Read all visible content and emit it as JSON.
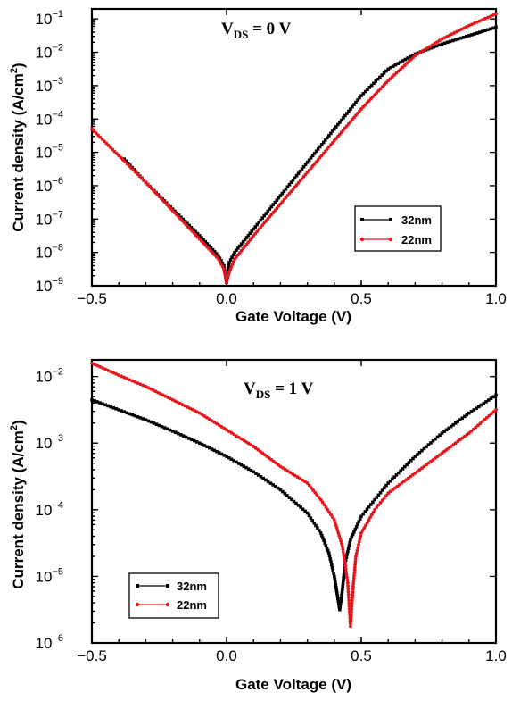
{
  "chart_data": [
    {
      "type": "line",
      "title": "",
      "annotation": {
        "main": "V",
        "sub": "DS",
        "rest": " = 0 V"
      },
      "xlabel": "Gate Voltage (V)",
      "ylabel": "Current density (A/cm",
      "ylabel_sup": "2",
      "ylabel_end": ")",
      "xlim": [
        -0.5,
        1.0
      ],
      "ylim_log10": [
        -9,
        -0.7
      ],
      "yscale": "log",
      "x_ticks": [
        -0.5,
        0.0,
        0.5,
        1.0
      ],
      "x_tick_labels": [
        "−0.5",
        "0.0",
        "0.5",
        "1.0"
      ],
      "y_tick_exponents": [
        -9,
        -8,
        -7,
        -6,
        -5,
        -4,
        -3,
        -2,
        -1
      ],
      "y_tick_labels": [
        "10",
        "10",
        "10",
        "10",
        "10",
        "10",
        "10",
        "10",
        "10"
      ],
      "y_tick_sup": [
        "−9",
        "−8",
        "−7",
        "−6",
        "−5",
        "−4",
        "−3",
        "−2",
        "−1"
      ],
      "grid": false,
      "legend_position": "bottom-right",
      "series": [
        {
          "name": "32nm",
          "color": "#000000",
          "marker": "square",
          "x": [
            -0.38,
            -0.3,
            -0.2,
            -0.1,
            -0.03,
            -0.01,
            0.0,
            0.01,
            0.03,
            0.1,
            0.2,
            0.3,
            0.4,
            0.5,
            0.6,
            0.7,
            0.8,
            0.9,
            1.0
          ],
          "log10": [
            -5.2,
            -5.9,
            -6.7,
            -7.5,
            -8.1,
            -8.4,
            -8.9,
            -8.3,
            -8.0,
            -7.3,
            -6.3,
            -5.3,
            -4.3,
            -3.3,
            -2.5,
            -2.05,
            -1.75,
            -1.5,
            -1.25
          ]
        },
        {
          "name": "22nm",
          "color": "#e8141b",
          "marker": "circle",
          "x": [
            -0.5,
            -0.4,
            -0.3,
            -0.2,
            -0.1,
            -0.03,
            -0.01,
            0.0,
            0.01,
            0.03,
            0.1,
            0.2,
            0.3,
            0.4,
            0.5,
            0.6,
            0.7,
            0.8,
            0.9,
            1.0
          ],
          "log10": [
            -4.3,
            -5.1,
            -5.9,
            -6.75,
            -7.6,
            -8.2,
            -8.5,
            -8.9,
            -8.6,
            -8.2,
            -7.5,
            -6.55,
            -5.6,
            -4.65,
            -3.7,
            -2.85,
            -2.1,
            -1.6,
            -1.2,
            -0.85
          ]
        }
      ]
    },
    {
      "type": "line",
      "title": "",
      "annotation": {
        "main": "V",
        "sub": "DS",
        "rest": " = 1 V"
      },
      "xlabel": "Gate Voltage (V)",
      "ylabel": "Current density (A/cm",
      "ylabel_sup": "2",
      "ylabel_end": ")",
      "xlim": [
        -0.5,
        1.0
      ],
      "ylim_log10": [
        -6,
        -1.75
      ],
      "yscale": "log",
      "x_ticks": [
        -0.5,
        0.0,
        0.5,
        1.0
      ],
      "x_tick_labels": [
        "−0.5",
        "0.0",
        "0.5",
        "1.0"
      ],
      "y_tick_exponents": [
        -6,
        -5,
        -4,
        -3,
        -2
      ],
      "y_tick_labels": [
        "10",
        "10",
        "10",
        "10",
        "10"
      ],
      "y_tick_sup": [
        "−6",
        "−5",
        "−4",
        "−3",
        "−2"
      ],
      "grid": false,
      "legend_position": "bottom-left",
      "series": [
        {
          "name": "32nm",
          "color": "#000000",
          "marker": "square",
          "x": [
            -0.5,
            -0.4,
            -0.3,
            -0.2,
            -0.1,
            0.0,
            0.1,
            0.2,
            0.3,
            0.35,
            0.38,
            0.4,
            0.41,
            0.42,
            0.43,
            0.44,
            0.46,
            0.5,
            0.55,
            0.6,
            0.7,
            0.8,
            0.9,
            1.0
          ],
          "log10": [
            -2.35,
            -2.5,
            -2.65,
            -2.82,
            -3.0,
            -3.2,
            -3.43,
            -3.7,
            -4.05,
            -4.35,
            -4.65,
            -5.0,
            -5.25,
            -5.5,
            -5.2,
            -4.8,
            -4.45,
            -4.1,
            -3.85,
            -3.6,
            -3.2,
            -2.85,
            -2.55,
            -2.28
          ]
        },
        {
          "name": "22nm",
          "color": "#e8141b",
          "marker": "circle",
          "x": [
            -0.5,
            -0.4,
            -0.3,
            -0.2,
            -0.1,
            0.0,
            0.1,
            0.2,
            0.3,
            0.35,
            0.4,
            0.43,
            0.45,
            0.46,
            0.47,
            0.48,
            0.5,
            0.55,
            0.6,
            0.7,
            0.8,
            0.9,
            1.0
          ],
          "log10": [
            -1.8,
            -1.98,
            -2.15,
            -2.35,
            -2.55,
            -2.8,
            -3.05,
            -3.35,
            -3.6,
            -3.85,
            -4.15,
            -4.55,
            -5.1,
            -5.75,
            -5.15,
            -4.7,
            -4.35,
            -4.0,
            -3.75,
            -3.45,
            -3.15,
            -2.85,
            -2.5
          ]
        }
      ]
    }
  ]
}
